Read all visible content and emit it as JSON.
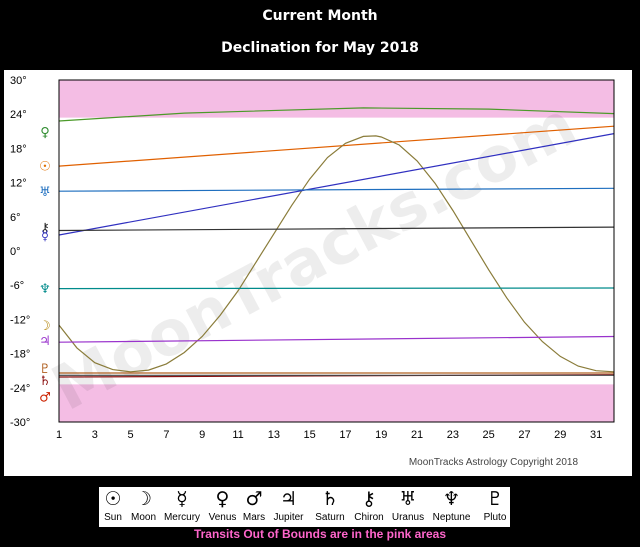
{
  "header": {
    "title": "Current Month",
    "subtitle": "Declination for May 2018"
  },
  "chart_data": {
    "type": "line",
    "title": "Declination for May 2018",
    "xlim": [
      1,
      32
    ],
    "ylim": [
      -30,
      30
    ],
    "x_ticks": [
      1,
      3,
      5,
      7,
      9,
      11,
      13,
      15,
      17,
      19,
      21,
      23,
      25,
      27,
      29,
      31
    ],
    "y_ticks": [
      30,
      24,
      18,
      12,
      6,
      0,
      -6,
      -12,
      -18,
      -24,
      -30
    ],
    "y_tick_labels": [
      "30°",
      "24°",
      "18°",
      "12°",
      "6°",
      "0°",
      "-6°",
      "-12°",
      "-18°",
      "-24°",
      "-30°"
    ],
    "out_of_bounds_bands": [
      [
        23.4,
        30
      ],
      [
        -30,
        -23.4
      ]
    ],
    "grid": false,
    "watermark": "MoonTracks.com",
    "copyright": "MoonTracks Astrology Copyright 2018",
    "series": [
      {
        "name": "Sun",
        "color": "#e06000",
        "x": [
          1,
          32
        ],
        "y": [
          14.9,
          21.9
        ]
      },
      {
        "name": "Moon",
        "color": "#8a7c3a",
        "x": [
          1,
          2,
          3,
          4,
          5,
          6,
          7,
          8,
          9,
          10,
          11,
          12,
          13,
          14,
          15,
          16,
          17,
          18,
          18.7,
          19,
          20,
          21,
          22,
          23,
          24,
          25,
          26,
          27,
          28,
          29,
          30,
          31,
          32
        ],
        "y": [
          -13,
          -17,
          -19.6,
          -20.8,
          -21.2,
          -20.9,
          -19.8,
          -17.8,
          -15,
          -11.3,
          -7,
          -2,
          3,
          8,
          12.6,
          16.4,
          18.9,
          20.1,
          20.2,
          20,
          18.6,
          15.8,
          11.9,
          7.1,
          1.9,
          -3.3,
          -8.2,
          -12.5,
          -15.9,
          -18.5,
          -20.2,
          -21,
          -21.2
        ]
      },
      {
        "name": "Mercury",
        "color": "#3030c0",
        "x": [
          1,
          32
        ],
        "y": [
          2.8,
          20.6
        ]
      },
      {
        "name": "Venus",
        "color": "#4c9a2a",
        "x": [
          1,
          8,
          18,
          25,
          32
        ],
        "y": [
          22.8,
          24.2,
          25.1,
          24.9,
          24.1
        ]
      },
      {
        "name": "Mars",
        "color": "#8b1010",
        "x": [
          1,
          32
        ],
        "y": [
          -22.1,
          -21.7
        ]
      },
      {
        "name": "Jupiter",
        "color": "#9932cc",
        "x": [
          1,
          32
        ],
        "y": [
          -16,
          -15
        ]
      },
      {
        "name": "Saturn",
        "color": "#444444",
        "x": [
          1,
          32
        ],
        "y": [
          -21.8,
          -21.8
        ]
      },
      {
        "name": "Chiron",
        "color": "#333333",
        "x": [
          1,
          32
        ],
        "y": [
          3.6,
          4.2
        ]
      },
      {
        "name": "Uranus",
        "color": "#1f6fbf",
        "x": [
          1,
          32
        ],
        "y": [
          10.5,
          11.0
        ]
      },
      {
        "name": "Neptune",
        "color": "#008b8b",
        "x": [
          1,
          32
        ],
        "y": [
          -6.6,
          -6.5
        ]
      },
      {
        "name": "Pluto",
        "color": "#b06020",
        "x": [
          1,
          32
        ],
        "y": [
          -21.4,
          -21.4
        ]
      }
    ],
    "left_markers": [
      {
        "glyph": "♀",
        "y": 21,
        "color": "#2e8b2e"
      },
      {
        "glyph": "☉",
        "y": 15,
        "color": "#e07000"
      },
      {
        "glyph": "♅",
        "y": 10.5,
        "color": "#1f6fbf"
      },
      {
        "glyph": "⚷",
        "y": 4.2,
        "color": "#222222"
      },
      {
        "glyph": "☿",
        "y": 2.8,
        "color": "#3030c0"
      },
      {
        "glyph": "♆",
        "y": -6.5,
        "color": "#008b8b"
      },
      {
        "glyph": "☽",
        "y": -13,
        "color": "#b08000"
      },
      {
        "glyph": "♃",
        "y": -15.6,
        "color": "#9932cc"
      },
      {
        "glyph": "♇",
        "y": -20.5,
        "color": "#b06020"
      },
      {
        "glyph": "♄",
        "y": -22.6,
        "color": "#8b1010"
      },
      {
        "glyph": "♂",
        "y": -25.5,
        "color": "#cc2200"
      }
    ]
  },
  "legend": {
    "items": [
      {
        "glyph": "☉",
        "label": "Sun"
      },
      {
        "glyph": "☽",
        "label": "Moon"
      },
      {
        "glyph": "☿",
        "label": "Mercury"
      },
      {
        "glyph": "♀",
        "label": "Venus"
      },
      {
        "glyph": "♂",
        "label": "Mars"
      },
      {
        "glyph": "♃",
        "label": "Jupiter"
      },
      {
        "glyph": "♄",
        "label": "Saturn"
      },
      {
        "glyph": "⚷",
        "label": "Chiron"
      },
      {
        "glyph": "♅",
        "label": "Uranus"
      },
      {
        "glyph": "♆",
        "label": "Neptune"
      },
      {
        "glyph": "♇",
        "label": "Pluto"
      }
    ]
  },
  "footer": {
    "note": "Transits Out of Bounds are in the pink areas"
  },
  "colors": {
    "page_background": "#000000",
    "chart_background": "#ffffff",
    "oob_band": "#f4bde4",
    "note_text": "#ff66cc"
  }
}
